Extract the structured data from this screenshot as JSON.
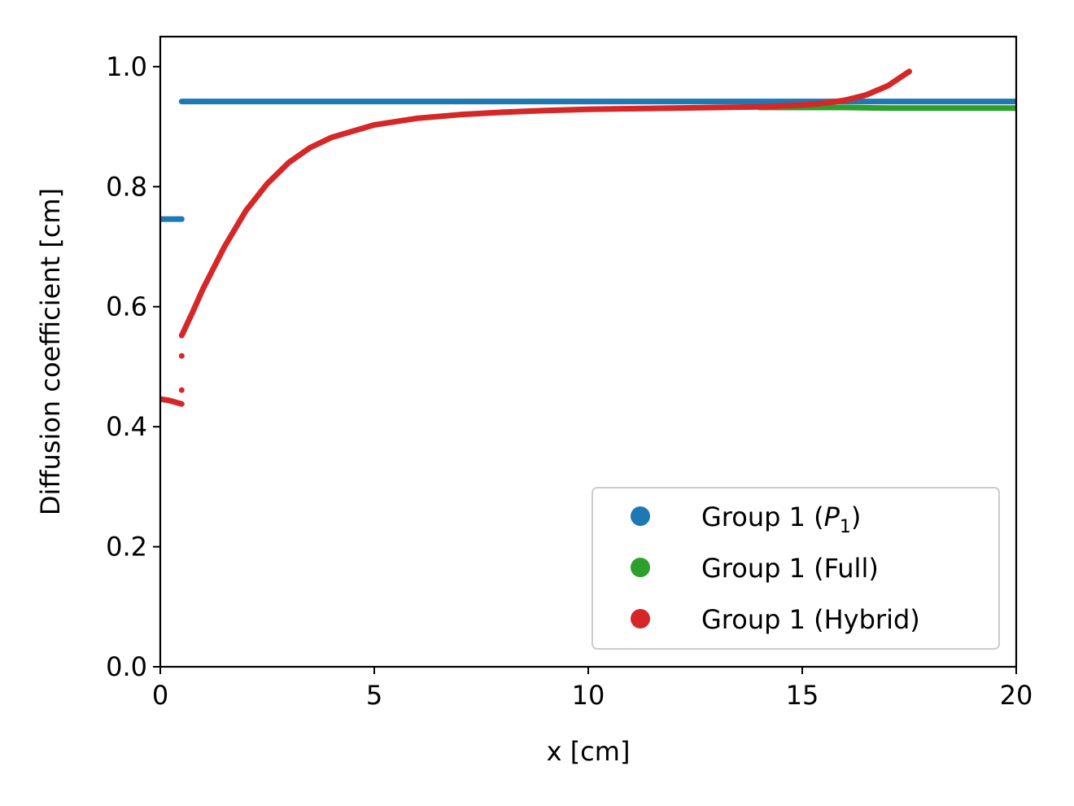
{
  "chart_data": {
    "type": "scatter",
    "xlabel": "x [cm]",
    "ylabel": "Diffusion coefficient [cm]",
    "xlim": [
      0,
      20
    ],
    "ylim": [
      0,
      1.05
    ],
    "xticks": [
      "0",
      "5",
      "10",
      "15",
      "20"
    ],
    "yticks": [
      "0.0",
      "0.2",
      "0.4",
      "0.6",
      "0.8",
      "1.0"
    ],
    "xtick_values": [
      0,
      5,
      10,
      15,
      20
    ],
    "ytick_values": [
      0.0,
      0.2,
      0.4,
      0.6,
      0.8,
      1.0
    ],
    "grid": false,
    "legend_position": "lower-right",
    "series": [
      {
        "name": "Group 1 (P1)",
        "legend_prefix": "Group 1 (",
        "legend_symbol": "P",
        "legend_subscript": "1",
        "legend_suffix": ")",
        "color": "#1f77b4",
        "segments": [
          {
            "x": [
              0.0,
              0.1,
              0.2,
              0.3,
              0.4,
              0.5
            ],
            "y": [
              0.746,
              0.746,
              0.746,
              0.746,
              0.746,
              0.746
            ]
          },
          {
            "x": [
              0.5,
              2,
              4,
              6,
              8,
              10,
              12,
              14,
              16,
              18,
              20
            ],
            "y": [
              0.942,
              0.942,
              0.942,
              0.942,
              0.942,
              0.942,
              0.942,
              0.942,
              0.942,
              0.942,
              0.942
            ]
          }
        ]
      },
      {
        "name": "Group 1 (Full)",
        "legend_label": "Group 1 (Full)",
        "color": "#2ca02c",
        "segments": [
          {
            "x": [
              14.0,
              15.0,
              16.0,
              17.0,
              18.0,
              19.0,
              20.0
            ],
            "y": [
              0.932,
              0.932,
              0.932,
              0.931,
              0.931,
              0.931,
              0.931
            ]
          }
        ]
      },
      {
        "name": "Group 1 (Hybrid)",
        "legend_label": "Group 1 (Hybrid)",
        "color": "#d62728",
        "segments": [
          {
            "x": [
              0.0,
              0.1,
              0.2,
              0.3,
              0.4,
              0.5
            ],
            "y": [
              0.446,
              0.445,
              0.444,
              0.442,
              0.44,
              0.438
            ]
          },
          {
            "x": [
              0.5,
              0.75,
              1.0,
              1.5,
              2.0,
              2.5,
              3.0,
              3.5,
              4.0,
              5.0,
              6.0,
              7.0,
              8.0,
              9.0,
              10.0,
              11.0,
              12.0,
              13.0,
              14.0,
              15.0,
              15.5,
              16.0,
              16.5,
              17.0,
              17.5
            ],
            "y": [
              0.552,
              0.59,
              0.63,
              0.7,
              0.76,
              0.805,
              0.84,
              0.865,
              0.882,
              0.903,
              0.914,
              0.92,
              0.924,
              0.927,
              0.929,
              0.93,
              0.931,
              0.932,
              0.933,
              0.936,
              0.939,
              0.944,
              0.953,
              0.968,
              0.992
            ]
          }
        ],
        "points": [
          {
            "x": 0.5,
            "y": 0.518
          },
          {
            "x": 0.5,
            "y": 0.461
          }
        ]
      }
    ]
  }
}
